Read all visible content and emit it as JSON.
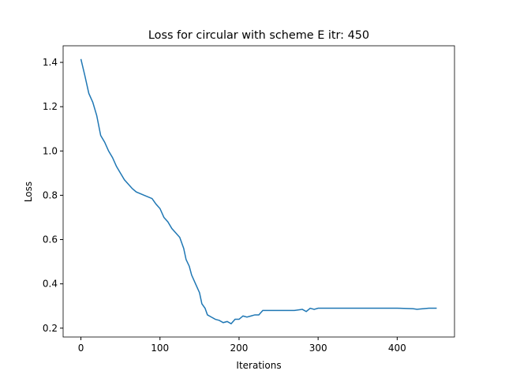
{
  "chart_data": {
    "type": "line",
    "title": "Loss for circular with scheme E itr: 450",
    "x_label": "Iterations",
    "y_label": "Loss",
    "x": [
      0,
      5,
      10,
      15,
      20,
      25,
      30,
      35,
      40,
      45,
      50,
      55,
      60,
      65,
      70,
      80,
      90,
      95,
      100,
      105,
      110,
      115,
      120,
      125,
      130,
      133,
      137,
      140,
      145,
      150,
      153,
      157,
      160,
      165,
      170,
      175,
      180,
      185,
      190,
      195,
      200,
      205,
      210,
      215,
      220,
      225,
      230,
      250,
      270,
      280,
      285,
      290,
      295,
      300,
      320,
      340,
      360,
      380,
      400,
      420,
      425,
      440,
      450
    ],
    "series": [
      {
        "name": "Loss",
        "color": "#1f77b4",
        "values": [
          1.415,
          1.34,
          1.26,
          1.22,
          1.16,
          1.07,
          1.04,
          1.0,
          0.97,
          0.93,
          0.9,
          0.87,
          0.85,
          0.83,
          0.815,
          0.8,
          0.785,
          0.76,
          0.74,
          0.7,
          0.68,
          0.65,
          0.63,
          0.61,
          0.56,
          0.51,
          0.48,
          0.44,
          0.4,
          0.36,
          0.31,
          0.29,
          0.26,
          0.25,
          0.24,
          0.235,
          0.225,
          0.23,
          0.22,
          0.24,
          0.24,
          0.255,
          0.25,
          0.255,
          0.26,
          0.26,
          0.28,
          0.28,
          0.28,
          0.285,
          0.275,
          0.29,
          0.285,
          0.29,
          0.29,
          0.29,
          0.29,
          0.29,
          0.29,
          0.288,
          0.285,
          0.29,
          0.29
        ]
      }
    ],
    "xlim": [
      -22.5,
      472.5
    ],
    "xticks": [
      0,
      100,
      200,
      300,
      400
    ],
    "ylim": [
      0.16,
      1.475
    ],
    "yticks": [
      0.2,
      0.4,
      0.6,
      0.8,
      {
        "value": 1.0,
        "label": "1.0"
      },
      1.2,
      1.4
    ]
  }
}
